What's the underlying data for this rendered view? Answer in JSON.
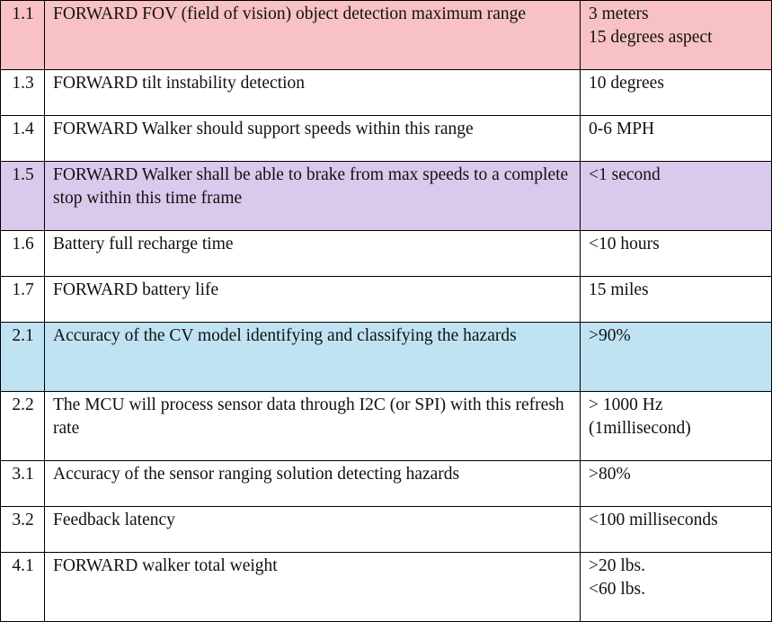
{
  "table": {
    "rows": [
      {
        "id": "1.1",
        "description": "FORWARD FOV (field of vision) object detection maximum range",
        "value": "3 meters\n15 degrees aspect",
        "highlight": "#f8c1c3"
      },
      {
        "id": "1.3",
        "description": "FORWARD tilt instability detection",
        "value": "10 degrees",
        "highlight": "#ffffff"
      },
      {
        "id": "1.4",
        "description": "FORWARD Walker should support speeds within this range",
        "value": "0-6 MPH",
        "highlight": "#ffffff"
      },
      {
        "id": "1.5",
        "description": "FORWARD Walker shall be able to brake from max speeds to a complete stop within this time frame",
        "value": "<1 second",
        "highlight": "#d9c9ec"
      },
      {
        "id": "1.6",
        "description": "Battery full recharge time",
        "value": "<10 hours",
        "highlight": "#ffffff"
      },
      {
        "id": "1.7",
        "description": "FORWARD battery life",
        "value": "15 miles",
        "highlight": "#ffffff"
      },
      {
        "id": "2.1",
        "description": "Accuracy of the CV model identifying and classifying the hazards",
        "value": ">90%",
        "highlight": "#c0e3f3"
      },
      {
        "id": "2.2",
        "description": "The MCU will process sensor data through I2C (or SPI) with this refresh rate",
        "value": "> 1000 Hz\n(1millisecond)",
        "highlight": "#ffffff"
      },
      {
        "id": "3.1",
        "description": "Accuracy of the sensor ranging solution detecting hazards",
        "value": ">80%",
        "highlight": "#ffffff"
      },
      {
        "id": "3.2",
        "description": "Feedback latency",
        "value": "<100 milliseconds",
        "highlight": "#ffffff"
      },
      {
        "id": "4.1",
        "description": "FORWARD walker total weight",
        "value": ">20 lbs.\n<60 lbs.",
        "highlight": "#ffffff"
      }
    ]
  }
}
